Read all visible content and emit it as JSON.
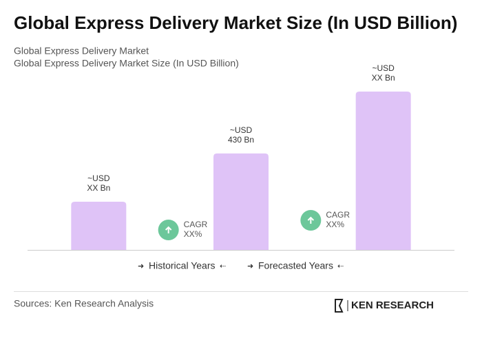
{
  "chart_data": {
    "type": "bar",
    "title": "Global Express Delivery Market Size (In USD Billion)",
    "subtitle": [
      "Global Express Delivery Market",
      "Global Express Delivery Market Size (In USD Billion)"
    ],
    "categories": [
      null,
      null,
      null
    ],
    "values": [
      215,
      430,
      706
    ],
    "value_labels": [
      [
        "~USD",
        "XX Bn"
      ],
      [
        "~USD",
        "430 Bn"
      ],
      [
        "~USD",
        "XX Bn"
      ]
    ],
    "color": "#dfc3f7",
    "annotations": [
      [
        "CAGR",
        "XX%"
      ],
      [
        "CAGR",
        "XX%"
      ]
    ],
    "legend": [
      "Historical Years",
      "Forecasted Years"
    ],
    "source": "Sources: Ken Research Analysis",
    "logo": "KEN RESEARCH"
  }
}
